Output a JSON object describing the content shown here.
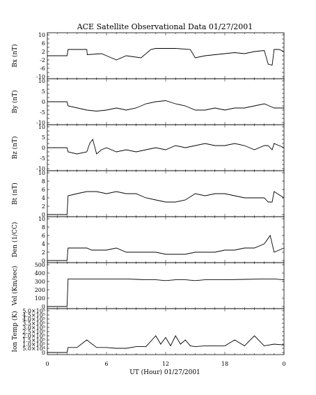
{
  "title": "ACE Satellite Observational Data   01/27/2001",
  "xlabel": "UT (Hour)   01/27/2001",
  "x_tick_labels": [
    "0",
    "6",
    "12",
    "18",
    "0"
  ],
  "chart_data": {
    "type": "line",
    "x_range_hours": [
      0,
      24
    ],
    "panels": [
      {
        "ylabel": "Bx (nT)",
        "ylim": [
          -10,
          10
        ],
        "y_ticks": [
          -10,
          -8,
          -6,
          -4,
          -2,
          0,
          2,
          4,
          6,
          8,
          10
        ],
        "y_tick_labels": [
          "-10",
          "-6",
          "-2",
          "2",
          "6",
          "10"
        ],
        "series": [
          {
            "x": [
              0,
              2,
              2.1,
              4,
              4.05,
              5.5,
              6.5,
              7,
              8,
              9.5,
              10.5,
              11,
              13,
              14.5,
              15,
              16,
              17,
              18,
              19,
              20,
              21,
              22,
              22.4,
              22.8,
              23,
              23.5,
              24
            ],
            "y": [
              0,
              0,
              3,
              3,
              0.5,
              1,
              -1,
              -2,
              0,
              -1,
              3,
              3.5,
              3.5,
              3,
              -1,
              0,
              0.5,
              1,
              1.5,
              1,
              2,
              2.5,
              -4,
              -4.5,
              3,
              3,
              2
            ]
          }
        ]
      },
      {
        "ylabel": "By (nT)",
        "ylim": [
          -10,
          10
        ],
        "y_ticks": [
          -10,
          -8,
          -6,
          -4,
          -2,
          0,
          2,
          4,
          6,
          8,
          10
        ],
        "y_tick_labels": [
          "-10",
          "-5",
          "0",
          "5",
          "10"
        ],
        "series": [
          {
            "x": [
              0,
              2,
              2.1,
              4,
              5,
              6,
              7,
              8,
              9,
              10,
              11,
              12,
              13,
              14,
              15,
              16,
              17,
              18,
              19,
              20,
              21,
              22,
              22.5,
              23,
              24
            ],
            "y": [
              0,
              0,
              -2,
              -4,
              -4.5,
              -4,
              -3,
              -4,
              -3,
              -1,
              0,
              0.5,
              -1,
              -2,
              -4,
              -4,
              -3,
              -4,
              -3,
              -3,
              -2,
              -1,
              -2,
              -3,
              -3
            ]
          }
        ]
      },
      {
        "ylabel": "Bz (nT)",
        "ylim": [
          -10,
          10
        ],
        "y_ticks": [
          -10,
          -8,
          -6,
          -4,
          -2,
          0,
          2,
          4,
          6,
          8,
          10
        ],
        "y_tick_labels": [
          "-10",
          "-5",
          "0",
          "5",
          "10"
        ],
        "series": [
          {
            "x": [
              0,
              2,
              2.1,
              3,
              4,
              4.3,
              4.6,
              5,
              5.5,
              6,
              7,
              8,
              9,
              10,
              11,
              12,
              13,
              14,
              15,
              16,
              17,
              18,
              19,
              20,
              21,
              22,
              22.4,
              22.8,
              23,
              24
            ],
            "y": [
              0,
              0,
              -2,
              -3,
              -2,
              2,
              4,
              -3,
              -1,
              0,
              -2,
              -1,
              -2,
              -1,
              0,
              -1,
              1,
              0,
              1,
              2,
              1,
              1,
              2,
              1,
              -1,
              1,
              1,
              -1,
              2,
              0
            ]
          }
        ]
      },
      {
        "ylabel": "Bt (nT)",
        "ylim": [
          0,
          10
        ],
        "y_ticks": [
          0,
          2,
          4,
          6,
          8,
          10
        ],
        "y_tick_labels": [
          "0",
          "2",
          "4",
          "6",
          "8",
          "10"
        ],
        "series": [
          {
            "x": [
              0,
              2,
              2.1,
              3,
              4,
              5,
              6,
              7,
              8,
              9,
              10,
              11,
              12,
              13,
              14,
              15,
              16,
              17,
              18,
              19,
              20,
              21,
              22,
              22.4,
              22.8,
              23,
              24
            ],
            "y": [
              0,
              0,
              4.5,
              5,
              5.5,
              5.5,
              5,
              5.5,
              5,
              5,
              4,
              3.5,
              3,
              3,
              3.5,
              5,
              4.5,
              5,
              5,
              4.5,
              4,
              4,
              4,
              3,
              3,
              5.5,
              4
            ]
          }
        ]
      },
      {
        "ylabel": "Den (1/CC)",
        "ylim": [
          0,
          10
        ],
        "y_ticks": [
          0,
          2,
          4,
          6,
          8,
          10
        ],
        "y_tick_labels": [
          "0",
          "2",
          "4",
          "6",
          "8",
          "10"
        ],
        "series": [
          {
            "x": [
              0,
              2,
              2.1,
              3,
              4,
              4.5,
              5,
              6,
              7,
              8,
              9,
              10,
              11,
              12,
              13,
              14,
              15,
              16,
              17,
              18,
              19,
              20,
              21,
              22,
              22.6,
              23,
              24
            ],
            "y": [
              0,
              0,
              3,
              3,
              3,
              2.5,
              2.5,
              2.5,
              3,
              2,
              2,
              2,
              2,
              1.5,
              1.5,
              1.5,
              2,
              2,
              2,
              2.5,
              2.5,
              3,
              3,
              4,
              6,
              2,
              3
            ]
          }
        ]
      },
      {
        "ylabel": "Vel (Km/sec)",
        "ylim": [
          0,
          500
        ],
        "y_ticks": [
          0,
          100,
          200,
          300,
          400,
          500
        ],
        "y_tick_labels": [
          "0",
          "100",
          "200",
          "300",
          "400",
          "500"
        ],
        "series": [
          {
            "x": [
              0,
              2,
              2.1,
              4,
              6,
              8,
              9,
              10,
              11,
              12,
              13,
              14,
              15,
              16,
              18,
              20,
              22,
              23,
              24
            ],
            "y": [
              0,
              0,
              330,
              330,
              330,
              330,
              325,
              320,
              320,
              310,
              320,
              320,
              310,
              320,
              320,
              325,
              330,
              330,
              320
            ]
          }
        ]
      },
      {
        "ylabel": "Ion Temp (K)",
        "ylim": [
          0,
          500000
        ],
        "y_ticks": [
          0,
          50000,
          100000,
          150000,
          200000,
          250000,
          300000,
          350000,
          400000,
          450000,
          500000
        ],
        "y_tick_labels": [
          "0",
          "5.0×10⁴",
          "1.0×10⁵",
          "1.5×10⁵",
          "2.0×10⁵",
          "2.5×10⁵",
          "3.0×10⁵",
          "3.5×10⁵",
          "4.0×10⁵",
          "4.5×10⁵",
          "5.0×10⁵"
        ],
        "series": [
          {
            "x": [
              0,
              2,
              2.1,
              3,
              4,
              5,
              6,
              7,
              8,
              9,
              10,
              11,
              11.5,
              12,
              12.5,
              13,
              13.5,
              14,
              14.5,
              15,
              16,
              17,
              18,
              19,
              20,
              21,
              22,
              23,
              24
            ],
            "y": [
              0,
              0,
              60000,
              60000,
              150000,
              60000,
              60000,
              50000,
              50000,
              70000,
              70000,
              200000,
              100000,
              180000,
              80000,
              200000,
              100000,
              150000,
              80000,
              70000,
              80000,
              80000,
              80000,
              150000,
              80000,
              200000,
              80000,
              100000,
              90000
            ]
          }
        ]
      }
    ]
  }
}
